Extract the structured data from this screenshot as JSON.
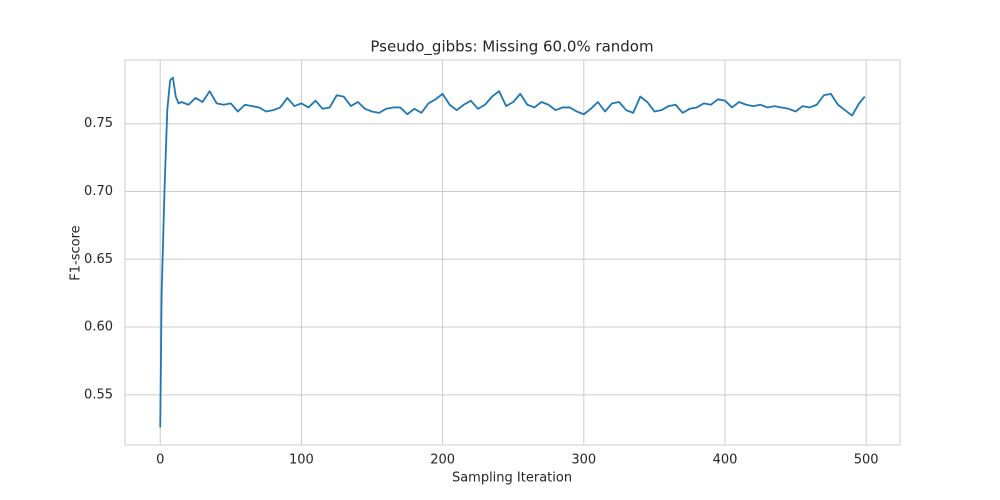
{
  "chart_data": {
    "type": "line",
    "title": "Pseudo_gibbs: Missing 60.0% random",
    "x_label": "Sampling Iteration",
    "y_label": "F1-score",
    "color": "#1f77b4",
    "grid": true,
    "xlim": [
      -24.95,
      523.95
    ],
    "xticks": [
      0,
      100,
      200,
      300,
      400,
      500
    ],
    "ylim": [
      0.513,
      0.797
    ],
    "yticks": [
      0.55,
      {
        "value": 0.6,
        "label": "0.60"
      },
      0.65,
      {
        "value": 0.7,
        "label": "0.70"
      },
      0.75
    ],
    "x": [
      0,
      1,
      3,
      5,
      7,
      9,
      11,
      13,
      15,
      20,
      25,
      30,
      35,
      40,
      45,
      50,
      55,
      60,
      65,
      70,
      75,
      80,
      85,
      90,
      95,
      100,
      105,
      110,
      115,
      120,
      125,
      130,
      135,
      140,
      145,
      150,
      155,
      160,
      165,
      170,
      175,
      180,
      185,
      190,
      195,
      200,
      205,
      210,
      215,
      220,
      225,
      230,
      235,
      240,
      245,
      250,
      255,
      260,
      265,
      270,
      275,
      280,
      285,
      290,
      295,
      300,
      305,
      310,
      315,
      320,
      325,
      330,
      335,
      340,
      345,
      350,
      355,
      360,
      365,
      370,
      375,
      380,
      385,
      390,
      395,
      400,
      405,
      410,
      415,
      420,
      425,
      430,
      435,
      440,
      445,
      450,
      455,
      460,
      465,
      470,
      475,
      480,
      485,
      490,
      495,
      499
    ],
    "values": [
      0.526,
      0.625,
      0.7,
      0.76,
      0.782,
      0.784,
      0.77,
      0.765,
      0.766,
      0.764,
      0.769,
      0.766,
      0.774,
      0.765,
      0.764,
      0.765,
      0.759,
      0.764,
      0.763,
      0.762,
      0.759,
      0.76,
      0.762,
      0.769,
      0.763,
      0.765,
      0.762,
      0.767,
      0.761,
      0.762,
      0.771,
      0.77,
      0.763,
      0.766,
      0.761,
      0.759,
      0.758,
      0.761,
      0.762,
      0.762,
      0.757,
      0.761,
      0.758,
      0.765,
      0.768,
      0.772,
      0.764,
      0.76,
      0.764,
      0.767,
      0.761,
      0.764,
      0.77,
      0.774,
      0.763,
      0.766,
      0.772,
      0.764,
      0.762,
      0.766,
      0.764,
      0.76,
      0.762,
      0.762,
      0.759,
      0.757,
      0.761,
      0.766,
      0.759,
      0.765,
      0.766,
      0.76,
      0.758,
      0.77,
      0.766,
      0.759,
      0.76,
      0.763,
      0.764,
      0.758,
      0.761,
      0.762,
      0.765,
      0.764,
      0.768,
      0.767,
      0.762,
      0.766,
      0.764,
      0.763,
      0.764,
      0.762,
      0.763,
      0.762,
      0.761,
      0.759,
      0.763,
      0.762,
      0.764,
      0.771,
      0.772,
      0.764,
      0.76,
      0.756,
      0.765,
      0.77
    ]
  }
}
